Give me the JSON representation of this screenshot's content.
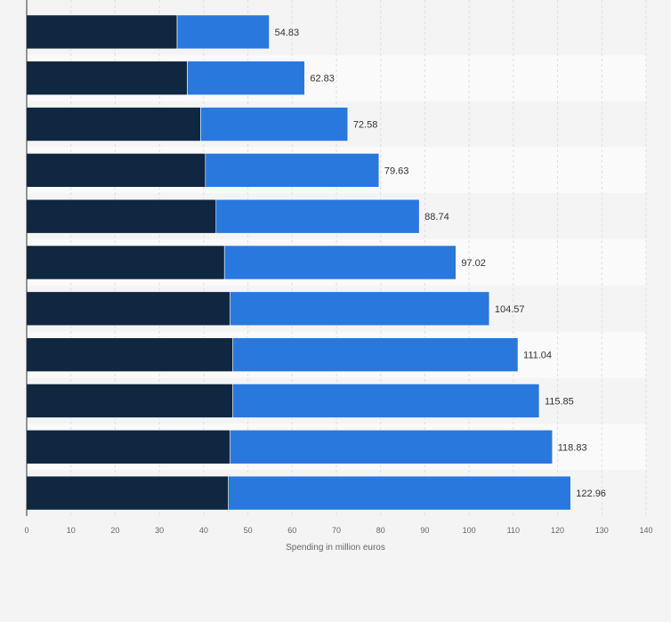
{
  "chart_data": {
    "type": "bar",
    "orientation": "horizontal",
    "stacked": true,
    "categories": [
      "",
      "",
      "",
      "",
      "",
      "",
      "",
      "",
      "",
      "",
      ""
    ],
    "series": [
      {
        "values": [
          34.0,
          36.3,
          39.3,
          40.4,
          42.8,
          44.7,
          46.0,
          46.6,
          46.6,
          46.0,
          45.6
        ],
        "color": "#0f2740"
      },
      {
        "values": [
          20.83,
          26.53,
          33.28,
          39.23,
          45.94,
          52.32,
          58.57,
          64.44,
          69.25,
          72.83,
          77.36
        ],
        "color": "#2878de"
      }
    ],
    "totals": [
      54.83,
      62.83,
      72.58,
      79.63,
      88.74,
      97.02,
      104.57,
      111.04,
      115.85,
      118.83,
      122.96
    ],
    "total_labels": [
      "54.83",
      "62.83",
      "72.58",
      "79.63",
      "88.74",
      "97.02",
      "104.57",
      "111.04",
      "115.85",
      "118.83",
      "122.96"
    ],
    "xlim": [
      0,
      140
    ],
    "x_ticks": [
      0,
      10,
      20,
      30,
      40,
      50,
      60,
      70,
      80,
      90,
      100,
      110,
      120,
      130,
      140
    ],
    "x_tick_labels": [
      "0",
      "10",
      "20",
      "30",
      "40",
      "50",
      "60",
      "70",
      "80",
      "90",
      "100",
      "110",
      "120",
      "130",
      "140"
    ],
    "xlabel": "Spending in million euros",
    "grid": true,
    "legend": "none"
  }
}
